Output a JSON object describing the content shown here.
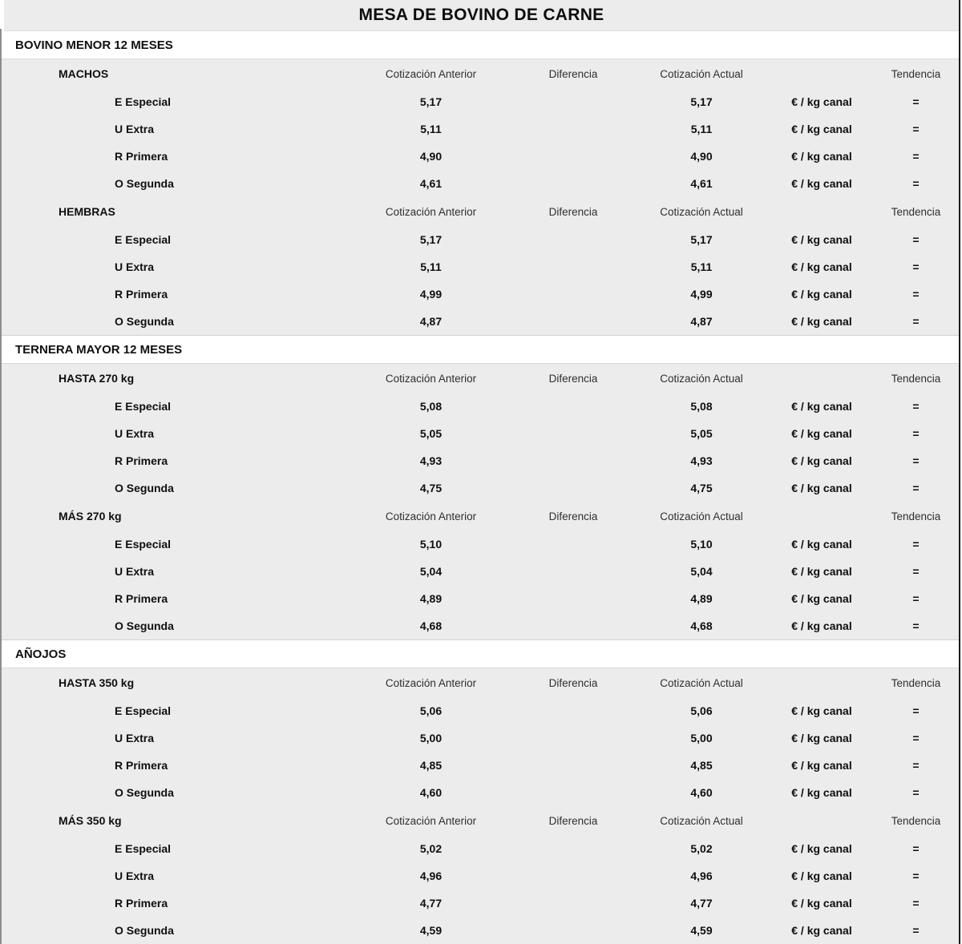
{
  "title": "MESA DE BOVINO DE CARNE",
  "unit_label": "€ / kg canal",
  "columns": {
    "anterior": "Cotización Anterior",
    "diferencia": "Diferencia",
    "actual": "Cotización Actual",
    "tendencia": "Tendencia"
  },
  "colors": {
    "band_gray": "#ececec",
    "page_white": "#ffffff",
    "border_right": "#1b1b1b",
    "border_left": "#8d8d8d"
  },
  "sections": [
    {
      "name": "BOVINO MENOR 12 MESES",
      "groups": [
        {
          "name": "MACHOS",
          "rows": [
            {
              "label": "E Especial",
              "anterior": "5,17",
              "diferencia": "",
              "actual": "5,17",
              "tendencia": "="
            },
            {
              "label": "U Extra",
              "anterior": "5,11",
              "diferencia": "",
              "actual": "5,11",
              "tendencia": "="
            },
            {
              "label": "R Primera",
              "anterior": "4,90",
              "diferencia": "",
              "actual": "4,90",
              "tendencia": "="
            },
            {
              "label": "O Segunda",
              "anterior": "4,61",
              "diferencia": "",
              "actual": "4,61",
              "tendencia": "="
            }
          ]
        },
        {
          "name": "HEMBRAS",
          "rows": [
            {
              "label": "E Especial",
              "anterior": "5,17",
              "diferencia": "",
              "actual": "5,17",
              "tendencia": "="
            },
            {
              "label": "U Extra",
              "anterior": "5,11",
              "diferencia": "",
              "actual": "5,11",
              "tendencia": "="
            },
            {
              "label": "R Primera",
              "anterior": "4,99",
              "diferencia": "",
              "actual": "4,99",
              "tendencia": "="
            },
            {
              "label": "O Segunda",
              "anterior": "4,87",
              "diferencia": "",
              "actual": "4,87",
              "tendencia": "="
            }
          ]
        }
      ]
    },
    {
      "name": "TERNERA MAYOR 12 MESES",
      "groups": [
        {
          "name": "HASTA 270 kg",
          "rows": [
            {
              "label": "E Especial",
              "anterior": "5,08",
              "diferencia": "",
              "actual": "5,08",
              "tendencia": "="
            },
            {
              "label": "U Extra",
              "anterior": "5,05",
              "diferencia": "",
              "actual": "5,05",
              "tendencia": "="
            },
            {
              "label": "R Primera",
              "anterior": "4,93",
              "diferencia": "",
              "actual": "4,93",
              "tendencia": "="
            },
            {
              "label": "O Segunda",
              "anterior": "4,75",
              "diferencia": "",
              "actual": "4,75",
              "tendencia": "="
            }
          ]
        },
        {
          "name": "MÁS 270 kg",
          "rows": [
            {
              "label": "E Especial",
              "anterior": "5,10",
              "diferencia": "",
              "actual": "5,10",
              "tendencia": "="
            },
            {
              "label": "U Extra",
              "anterior": "5,04",
              "diferencia": "",
              "actual": "5,04",
              "tendencia": "="
            },
            {
              "label": "R Primera",
              "anterior": "4,89",
              "diferencia": "",
              "actual": "4,89",
              "tendencia": "="
            },
            {
              "label": "O Segunda",
              "anterior": "4,68",
              "diferencia": "",
              "actual": "4,68",
              "tendencia": "="
            }
          ]
        }
      ]
    },
    {
      "name": "AÑOJOS",
      "groups": [
        {
          "name": "HASTA 350 kg",
          "rows": [
            {
              "label": "E Especial",
              "anterior": "5,06",
              "diferencia": "",
              "actual": "5,06",
              "tendencia": "="
            },
            {
              "label": "U Extra",
              "anterior": "5,00",
              "diferencia": "",
              "actual": "5,00",
              "tendencia": "="
            },
            {
              "label": "R Primera",
              "anterior": "4,85",
              "diferencia": "",
              "actual": "4,85",
              "tendencia": "="
            },
            {
              "label": "O Segunda",
              "anterior": "4,60",
              "diferencia": "",
              "actual": "4,60",
              "tendencia": "="
            }
          ]
        },
        {
          "name": "MÁS 350 kg",
          "rows": [
            {
              "label": "E Especial",
              "anterior": "5,02",
              "diferencia": "",
              "actual": "5,02",
              "tendencia": "="
            },
            {
              "label": "U Extra",
              "anterior": "4,96",
              "diferencia": "",
              "actual": "4,96",
              "tendencia": "="
            },
            {
              "label": "R Primera",
              "anterior": "4,77",
              "diferencia": "",
              "actual": "4,77",
              "tendencia": "="
            },
            {
              "label": "O Segunda",
              "anterior": "4,59",
              "diferencia": "",
              "actual": "4,59",
              "tendencia": "="
            }
          ]
        }
      ]
    }
  ]
}
